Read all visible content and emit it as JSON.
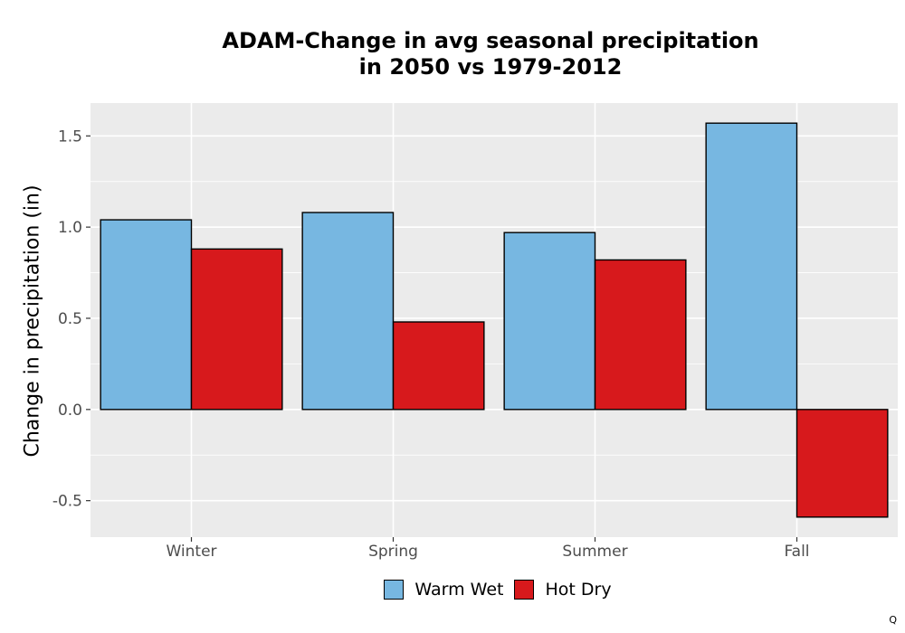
{
  "chart_data": {
    "type": "bar",
    "title": "ADAM-Change in avg seasonal precipitation\nin 2050 vs 1979-2012",
    "xlabel": "",
    "ylabel": "Change in precipitation (in)",
    "categories": [
      "Winter",
      "Spring",
      "Summer",
      "Fall"
    ],
    "series": [
      {
        "name": "Warm Wet",
        "color": "#77b7e1",
        "values": [
          1.04,
          1.08,
          0.97,
          1.57
        ]
      },
      {
        "name": "Hot Dry",
        "color": "#d7191c",
        "values": [
          0.88,
          0.48,
          0.82,
          -0.59
        ]
      }
    ],
    "yticks": [
      -0.5,
      0.0,
      0.5,
      1.0,
      1.5
    ],
    "ytick_labels": [
      "-0.5",
      "0.0",
      "0.5",
      "1.0",
      "1.5"
    ],
    "ylim": [
      -0.7,
      1.68
    ],
    "grid": true,
    "legend_position": "bottom"
  },
  "corner_mark": "Q"
}
